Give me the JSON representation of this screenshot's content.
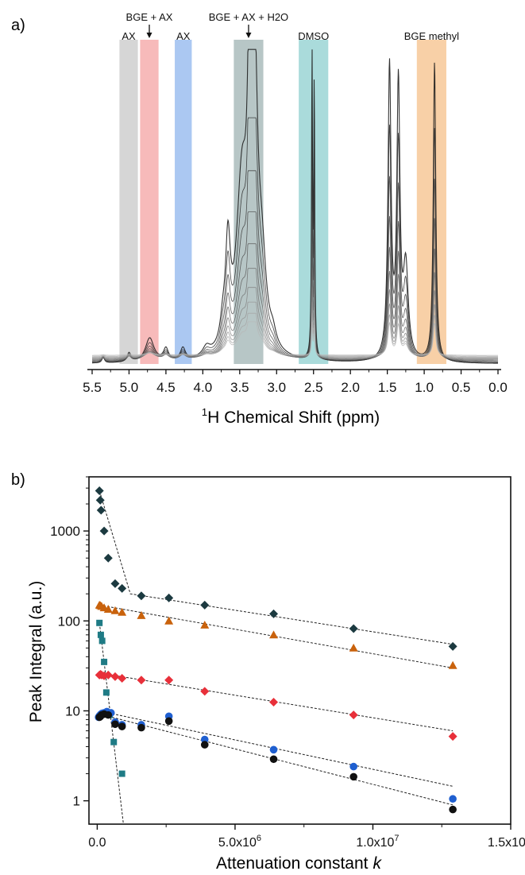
{
  "chart_data": [
    {
      "panel_label": "a)",
      "type": "spectrum",
      "xlabel_sup": "1",
      "xlabel_main": "H Chemical Shift (ppm)",
      "xlim": [
        5.5,
        0.0
      ],
      "x_ticks": [
        "5.5",
        "5.0",
        "4.5",
        "4.0",
        "3.5",
        "3.0",
        "2.5",
        "2.0",
        "1.5",
        "1.0",
        "0.5",
        "0.0"
      ],
      "regions": [
        {
          "label": "AX",
          "from": 5.13,
          "to": 4.88,
          "color": "#c8c8c8"
        },
        {
          "label": "BGE + AX",
          "from": 4.85,
          "to": 4.6,
          "color": "#f4a3a3",
          "arrow": true
        },
        {
          "label": "AX",
          "from": 4.38,
          "to": 4.15,
          "color": "#8fb5ee"
        },
        {
          "label": "BGE + AX + H2O",
          "from": 3.58,
          "to": 3.18,
          "color": "#9fb3b3",
          "arrow": true
        },
        {
          "label": "DMSO",
          "from": 2.7,
          "to": 2.3,
          "color": "#8ecfcf"
        },
        {
          "label": "BGE methyl",
          "from": 1.1,
          "to": 0.7,
          "color": "#f6c08a"
        }
      ],
      "peaks": [
        {
          "x": 5.35,
          "h": 0.02,
          "w": 0.02
        },
        {
          "x": 5.0,
          "h": 0.03,
          "w": 0.03
        },
        {
          "x": 4.72,
          "h": 0.08,
          "w": 0.07
        },
        {
          "x": 4.5,
          "h": 0.04,
          "w": 0.04
        },
        {
          "x": 4.27,
          "h": 0.04,
          "w": 0.04
        },
        {
          "x": 3.95,
          "h": 0.03,
          "w": 0.06
        },
        {
          "x": 3.73,
          "h": 0.06,
          "w": 0.04
        },
        {
          "x": 3.66,
          "h": 0.33,
          "w": 0.04
        },
        {
          "x": 3.47,
          "h": 0.55,
          "w": 0.09
        },
        {
          "x": 3.36,
          "h": 1.0,
          "w": 0.03
        },
        {
          "x": 3.3,
          "h": 0.85,
          "w": 0.05
        },
        {
          "x": 3.2,
          "h": 0.25,
          "w": 0.07
        },
        {
          "x": 3.05,
          "h": 0.04,
          "w": 0.05
        },
        {
          "x": 2.52,
          "h": 1.0,
          "w": 0.008
        },
        {
          "x": 2.49,
          "h": 0.9,
          "w": 0.008
        },
        {
          "x": 1.47,
          "h": 0.97,
          "w": 0.025
        },
        {
          "x": 1.35,
          "h": 0.9,
          "w": 0.025
        },
        {
          "x": 1.25,
          "h": 0.3,
          "w": 0.04
        },
        {
          "x": 0.86,
          "h": 1.0,
          "w": 0.02
        }
      ]
    },
    {
      "panel_label": "b)",
      "type": "scatter",
      "xlabel": "Attenuation constant k",
      "xlabel_main": "Attenuation constant",
      "xlabel_italic": "k",
      "ylabel": "Peak Integral (a.u.)",
      "xlim": [
        -300000,
        15000000
      ],
      "ylim": [
        0.55,
        4000
      ],
      "y_scale": "log",
      "x_ticks": [
        {
          "v": 0,
          "label": "0.0"
        },
        {
          "v": 5000000,
          "label": "5.0x10"
        },
        {
          "v": 10000000,
          "label": "1.0x10"
        },
        {
          "v": 15000000,
          "label": "1.5x10"
        }
      ],
      "x_tick_exp": "6",
      "x_tick_exp2": "7",
      "y_ticks": [
        {
          "v": 1,
          "label": "1"
        },
        {
          "v": 10,
          "label": "10"
        },
        {
          "v": 100,
          "label": "100"
        },
        {
          "v": 1000,
          "label": "1000"
        }
      ],
      "series": [
        {
          "marker": "diamond",
          "color": "#1c3a40",
          "x": [
            80000,
            110000,
            140000,
            250000,
            400000,
            650000,
            900000,
            1600000,
            2600000,
            3900000,
            6400000,
            9300000,
            12900000
          ],
          "y": [
            2800,
            2200,
            1700,
            1000,
            500,
            260,
            230,
            190,
            180,
            150,
            120,
            82,
            52
          ],
          "fit_x": [
            80000,
            1200000,
            12900000
          ],
          "fit_y": [
            2800,
            200,
            55
          ]
        },
        {
          "marker": "triangle",
          "color": "#c9620c",
          "x": [
            80000,
            120000,
            160000,
            250000,
            400000,
            650000,
            900000,
            1600000,
            2600000,
            3900000,
            6400000,
            9300000,
            12900000
          ],
          "y": [
            150,
            148,
            145,
            140,
            135,
            130,
            125,
            115,
            100,
            90,
            70,
            50,
            32
          ],
          "fit_x": [
            80000,
            12900000
          ],
          "fit_y": [
            150,
            30
          ]
        },
        {
          "marker": "diamond",
          "color": "#e8303a",
          "x": [
            80000,
            120000,
            160000,
            250000,
            400000,
            650000,
            900000,
            1600000,
            2600000,
            3900000,
            6400000,
            9300000,
            12900000
          ],
          "y": [
            25,
            25.5,
            25,
            24.5,
            25,
            24,
            23,
            22,
            22,
            16.5,
            12.5,
            9,
            5.2
          ],
          "fit_x": [
            200000,
            12900000
          ],
          "fit_y": [
            26,
            6
          ]
        },
        {
          "marker": "square",
          "color": "#1f7b85",
          "x": [
            80000,
            130000,
            180000,
            250000,
            330000,
            450000,
            600000,
            900000
          ],
          "y": [
            95,
            70,
            60,
            35,
            16,
            9,
            4.5,
            2.0
          ],
          "fit_x": [
            80000,
            950000
          ],
          "fit_y": [
            95,
            0.55
          ]
        },
        {
          "marker": "circle",
          "color": "#1f5fd0",
          "x": [
            50000,
            80000,
            110000,
            140000,
            180000,
            250000,
            350000,
            500000,
            650000,
            900000,
            1600000,
            2600000,
            3900000,
            6400000,
            9300000,
            12900000
          ],
          "y": [
            8.5,
            8.8,
            9,
            9.2,
            9.4,
            9.5,
            9.8,
            9.5,
            7.5,
            7.0,
            7.0,
            8.7,
            4.8,
            3.7,
            2.4,
            1.05
          ],
          "fit_x": [
            400000,
            12900000
          ],
          "fit_y": [
            9.5,
            1.45
          ]
        },
        {
          "marker": "circle",
          "color": "#111111",
          "x": [
            80000,
            120000,
            160000,
            250000,
            400000,
            650000,
            900000,
            1600000,
            2600000,
            3900000,
            6400000,
            9300000,
            12900000
          ],
          "y": [
            8.5,
            8.7,
            9.0,
            9.2,
            9.0,
            7.1,
            6.7,
            6.5,
            7.7,
            4.2,
            2.9,
            1.85,
            0.8
          ],
          "fit_x": [
            400000,
            12900000
          ],
          "fit_y": [
            8.7,
            0.9
          ]
        }
      ]
    }
  ]
}
